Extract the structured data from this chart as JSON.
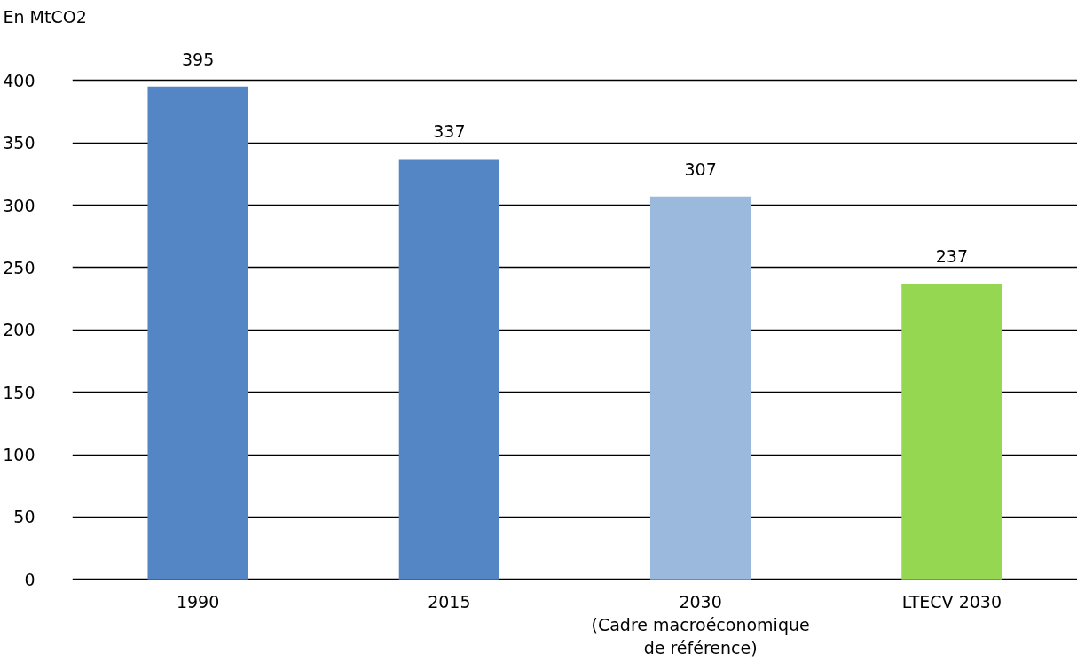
{
  "chart_data": {
    "type": "bar",
    "ylabel": "En MtCO2",
    "categories": [
      "1990",
      "2015",
      "2030\n(Cadre macroéconomique\nde référence)",
      "LTECV 2030"
    ],
    "values": [
      395,
      337,
      307,
      237
    ],
    "colors": [
      "#5485c4",
      "#5485c4",
      "#9bb9dd",
      "#96d752"
    ],
    "ylim": [
      0,
      400
    ],
    "yticks": [
      0,
      50,
      100,
      150,
      200,
      250,
      300,
      350,
      400
    ],
    "grid": "y",
    "data_labels": true,
    "legend": false
  }
}
